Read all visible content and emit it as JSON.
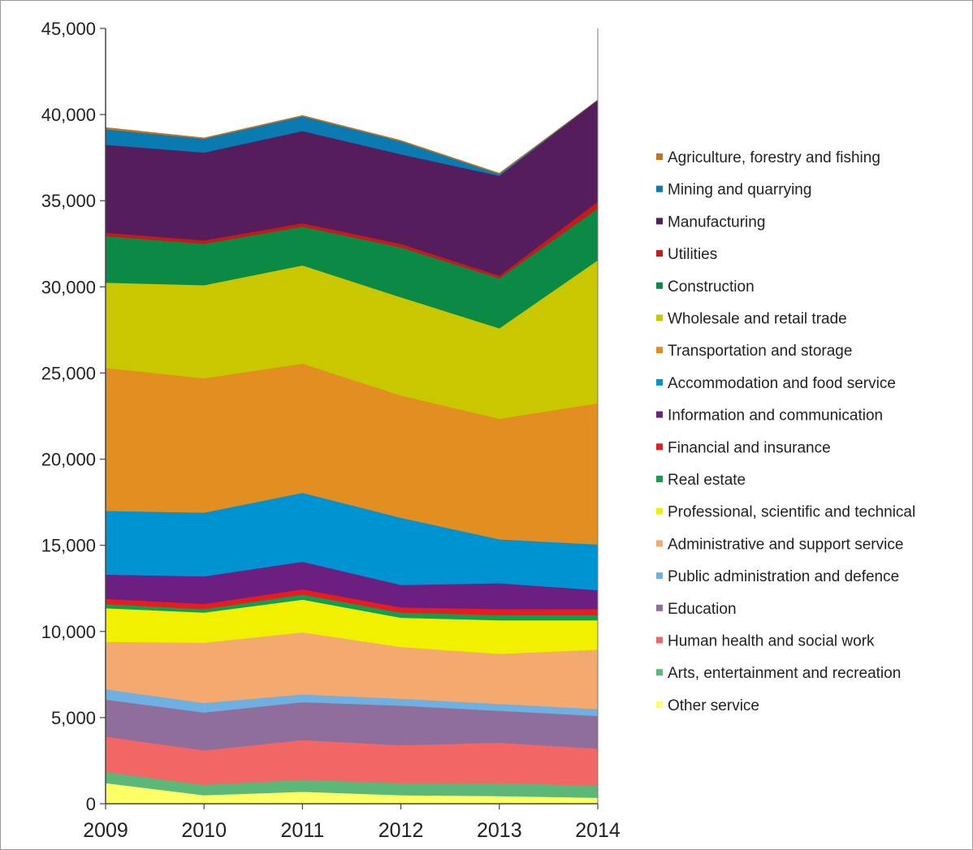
{
  "chart_data": {
    "type": "area",
    "stacked": true,
    "title": "",
    "xlabel": "",
    "ylabel": "",
    "x": [
      "2009",
      "2010",
      "2011",
      "2012",
      "2013",
      "2014"
    ],
    "ylim": [
      0,
      45000
    ],
    "yticks": [
      0,
      5000,
      10000,
      15000,
      20000,
      25000,
      30000,
      35000,
      40000,
      45000
    ],
    "ytick_labels": [
      "0",
      "5,000",
      "10,000",
      "15,000",
      "20,000",
      "25,000",
      "30,000",
      "35,000",
      "40,000",
      "45,000"
    ],
    "grid": false,
    "legend_position": "right",
    "series": [
      {
        "name": "Other service",
        "color": "#ffff66",
        "values": [
          1200,
          500,
          700,
          500,
          450,
          350
        ]
      },
      {
        "name": "Arts, entertainment and recreation",
        "color": "#5cb878",
        "values": [
          650,
          600,
          700,
          700,
          750,
          700
        ]
      },
      {
        "name": "Human health and social work",
        "color": "#f26666",
        "values": [
          2050,
          2000,
          2300,
          2200,
          2350,
          2150
        ]
      },
      {
        "name": "Education",
        "color": "#906e9c",
        "values": [
          2150,
          2200,
          2200,
          2300,
          1850,
          1900
        ]
      },
      {
        "name": "Public administration and defence",
        "color": "#6fb0e2",
        "values": [
          600,
          550,
          450,
          400,
          400,
          400
        ]
      },
      {
        "name": "Administrative and support service",
        "color": "#f4a96e",
        "values": [
          2750,
          3500,
          3600,
          3000,
          2900,
          3450
        ]
      },
      {
        "name": "Professional, scientific and technical",
        "color": "#f0f000",
        "values": [
          1950,
          1750,
          1900,
          1700,
          1950,
          1700
        ]
      },
      {
        "name": "Real estate",
        "color": "#129d4f",
        "values": [
          250,
          200,
          300,
          300,
          300,
          300
        ]
      },
      {
        "name": "Financial and insurance",
        "color": "#e81c1c",
        "values": [
          300,
          300,
          300,
          300,
          350,
          350
        ]
      },
      {
        "name": "Information and communication",
        "color": "#6c1f80",
        "values": [
          1400,
          1600,
          1600,
          1300,
          1500,
          1100
        ]
      },
      {
        "name": "Accommodation and food service",
        "color": "#0093d1",
        "values": [
          3700,
          3700,
          4000,
          3900,
          2550,
          2650
        ]
      },
      {
        "name": "Transportation and storage",
        "color": "#e38e21",
        "values": [
          8300,
          7800,
          7500,
          7100,
          7000,
          8200
        ]
      },
      {
        "name": "Wholesale and retail trade",
        "color": "#c9c800",
        "values": [
          4950,
          5400,
          5700,
          5700,
          5250,
          8300
        ]
      },
      {
        "name": "Construction",
        "color": "#0a8a44",
        "values": [
          2700,
          2400,
          2250,
          2900,
          2900,
          3000
        ]
      },
      {
        "name": "Utilities",
        "color": "#c61a1a",
        "values": [
          200,
          200,
          200,
          200,
          150,
          400
        ]
      },
      {
        "name": "Manufacturing",
        "color": "#561d5c",
        "values": [
          5100,
          5100,
          5350,
          5200,
          5800,
          5900
        ]
      },
      {
        "name": "Mining and quarrying",
        "color": "#0a7bb0",
        "values": [
          900,
          800,
          850,
          750,
          100,
          0
        ]
      },
      {
        "name": "Agriculture, forestry and fishing",
        "color": "#c6741a",
        "values": [
          100,
          50,
          50,
          50,
          50,
          0
        ]
      }
    ]
  }
}
